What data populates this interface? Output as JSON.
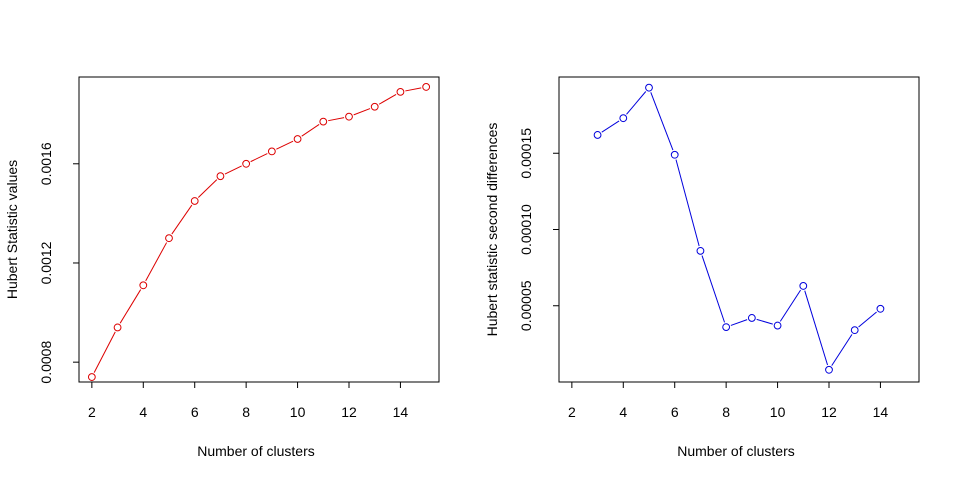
{
  "chart_data": [
    {
      "type": "line",
      "xlabel": "Number of clusters",
      "ylabel": "Hubert Statistic values",
      "xlim": [
        1.5,
        15.5
      ],
      "ylim": [
        0.00072,
        0.00195
      ],
      "xticks": [
        2,
        4,
        6,
        8,
        10,
        12,
        14
      ],
      "yticks": [
        0.0008,
        0.0012,
        0.0016
      ],
      "ytick_labels": [
        "0.0008",
        "0.0012",
        "0.0016"
      ],
      "color": "#dd0000",
      "series": [
        {
          "x": [
            2,
            3,
            4,
            5,
            6,
            7,
            8,
            9,
            10,
            11,
            12,
            13,
            14,
            15
          ],
          "values": [
            0.00074,
            0.00094,
            0.00111,
            0.0013,
            0.00145,
            0.00155,
            0.0016,
            0.00165,
            0.0017,
            0.00177,
            0.00179,
            0.00183,
            0.00189,
            0.00191
          ]
        }
      ],
      "grid": false,
      "legend": "none"
    },
    {
      "type": "line",
      "xlabel": "Number of clusters",
      "ylabel": "Hubert statistic second differences",
      "xlim": [
        1.5,
        15.5
      ],
      "ylim": [
        0.0,
        0.0002
      ],
      "xticks": [
        2,
        4,
        6,
        8,
        10,
        12,
        14
      ],
      "yticks": [
        5e-05,
        0.0001,
        0.00015
      ],
      "ytick_labels": [
        "0.00005",
        "0.00010",
        "0.00015"
      ],
      "color": "#0000dd",
      "series": [
        {
          "x": [
            3,
            4,
            5,
            6,
            7,
            8,
            9,
            10,
            11,
            12,
            13,
            14
          ],
          "values": [
            0.000162,
            0.000173,
            0.000193,
            0.000149,
            8.6e-05,
            3.6e-05,
            4.2e-05,
            3.7e-05,
            6.3e-05,
            8e-06,
            3.4e-05,
            4.8e-05
          ]
        }
      ],
      "grid": false,
      "legend": "none"
    }
  ]
}
